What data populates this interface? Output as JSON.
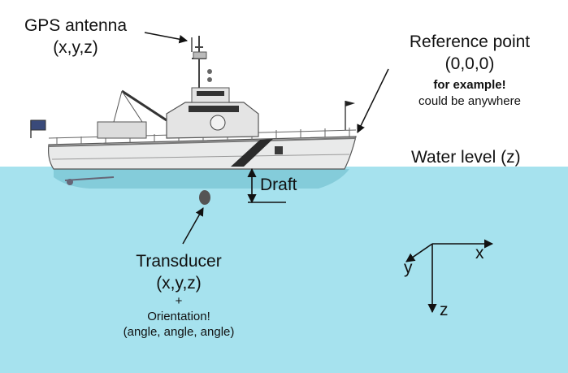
{
  "gps": {
    "title": "GPS antenna",
    "coords": "(x,y,z)"
  },
  "reference": {
    "title": "Reference point",
    "coords": "(0,0,0)",
    "note1": "for example!",
    "note2": "could be anywhere"
  },
  "water": {
    "label": "Water level (z)"
  },
  "draft": {
    "label": "Draft"
  },
  "transducer": {
    "title": "Transducer",
    "coords": "(x,y,z)",
    "plus": "+",
    "orientation": "Orientation!",
    "angles": "(angle, angle, angle)"
  },
  "axes": {
    "x": "x",
    "y": "y",
    "z": "z"
  },
  "colors": {
    "water": "#a6e2ee",
    "hull": "#e9eaea",
    "stripe": "#2b2b2b",
    "ink": "#111111"
  }
}
